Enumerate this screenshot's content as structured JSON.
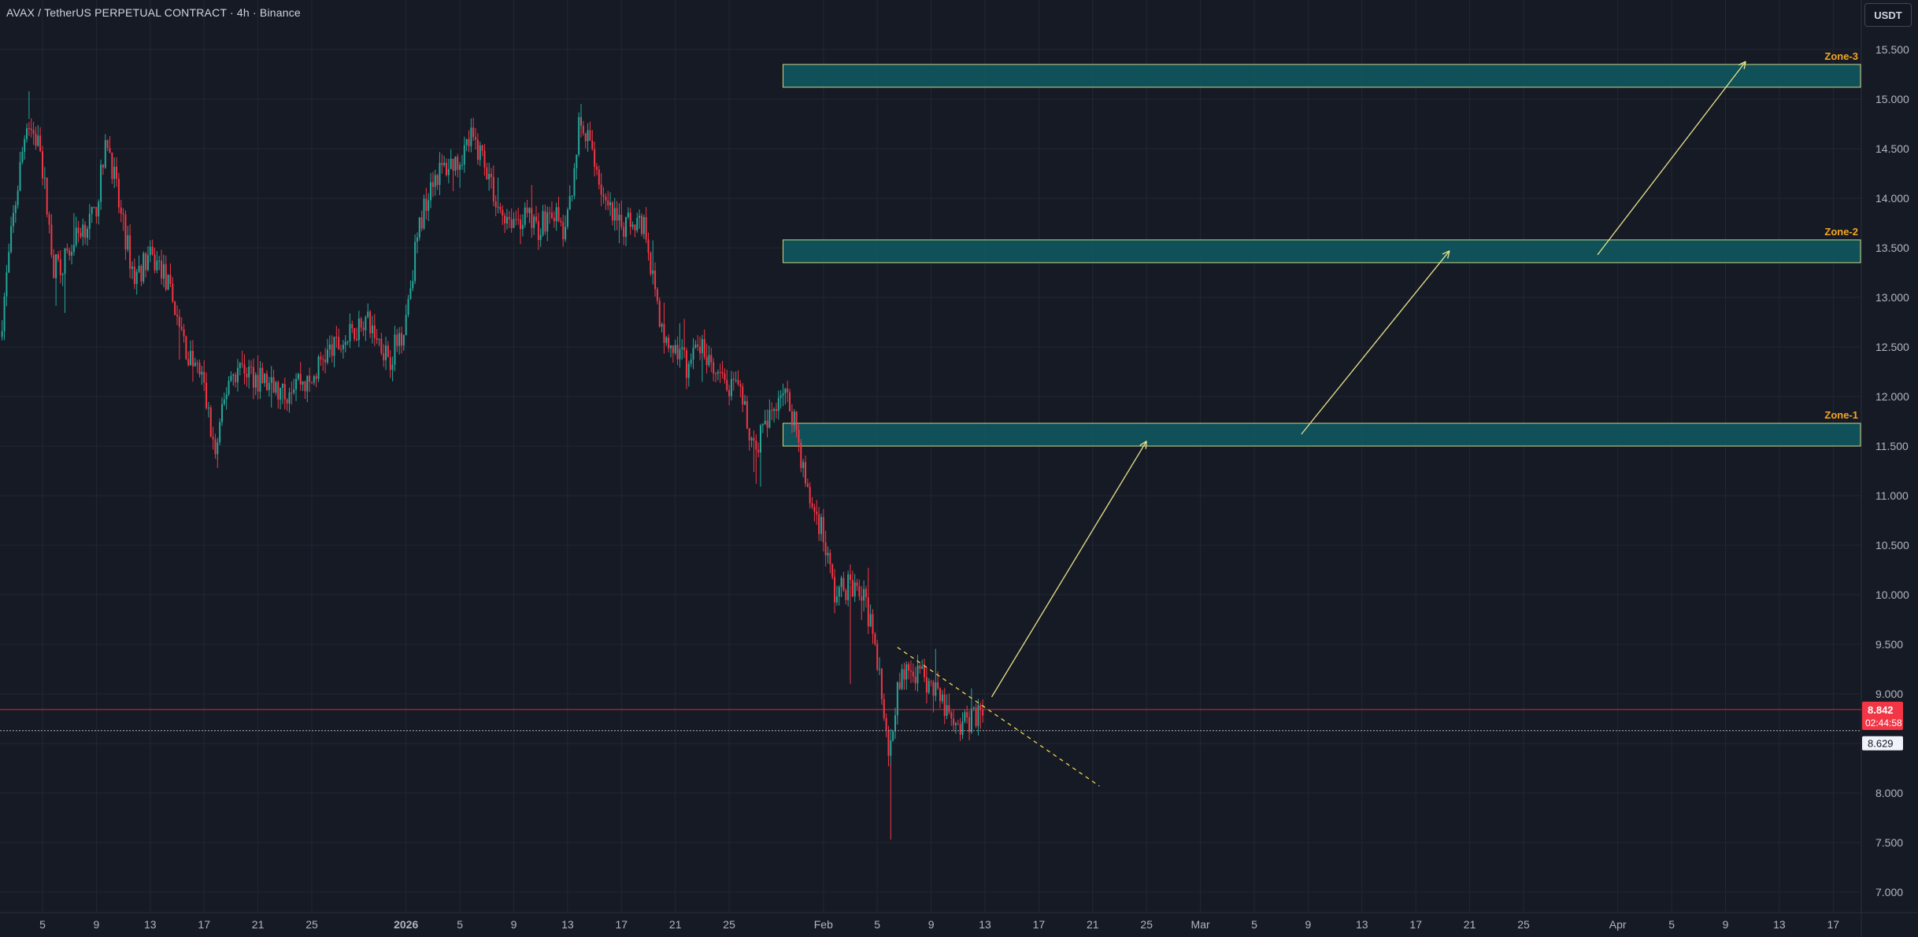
{
  "header": {
    "title": "AVAX / TetherUS PERPETUAL CONTRACT · 4h · Binance",
    "currency_button": "USDT"
  },
  "colors": {
    "background": "#161a25",
    "grid": "#232734",
    "up": "#26a69a",
    "down": "#f23645",
    "zone_fill": "#0e5a63",
    "zone_border": "#c8d98a",
    "zone_label": "#f5a623",
    "arrow": "#e8e38a",
    "trendline": "#f0d84a",
    "last_price": "#f23645",
    "axis_text": "#b2b5be"
  },
  "chart_data": {
    "type": "candlestick",
    "symbol": "AVAX / TetherUS PERPETUAL CONTRACT",
    "interval": "4h",
    "exchange": "Binance",
    "y_axis": {
      "ticks": [
        "15.500",
        "15.000",
        "14.500",
        "14.000",
        "13.500",
        "13.000",
        "12.500",
        "12.000",
        "11.500",
        "11.000",
        "10.500",
        "10.000",
        "9.500",
        "9.000",
        "8.500",
        "8.000",
        "7.500",
        "7.000"
      ],
      "range": [
        6.82,
        15.72
      ]
    },
    "x_axis": {
      "ticks": [
        {
          "label": "5",
          "date": "2025-12-05"
        },
        {
          "label": "9",
          "date": "2025-12-09"
        },
        {
          "label": "13",
          "date": "2025-12-13"
        },
        {
          "label": "17",
          "date": "2025-12-17"
        },
        {
          "label": "21",
          "date": "2025-12-21"
        },
        {
          "label": "25",
          "date": "2025-12-25"
        },
        {
          "label": "2026",
          "date": "2026-01-01",
          "bold": true
        },
        {
          "label": "5",
          "date": "2026-01-05"
        },
        {
          "label": "9",
          "date": "2026-01-09"
        },
        {
          "label": "13",
          "date": "2026-01-13"
        },
        {
          "label": "17",
          "date": "2026-01-17"
        },
        {
          "label": "21",
          "date": "2026-01-21"
        },
        {
          "label": "25",
          "date": "2026-01-25"
        },
        {
          "label": "Feb",
          "date": "2026-02-01"
        },
        {
          "label": "5",
          "date": "2026-02-05"
        },
        {
          "label": "9",
          "date": "2026-02-09"
        },
        {
          "label": "13",
          "date": "2026-02-13"
        },
        {
          "label": "17",
          "date": "2026-02-17"
        },
        {
          "label": "21",
          "date": "2026-02-21"
        },
        {
          "label": "25",
          "date": "2026-02-25"
        },
        {
          "label": "Mar",
          "date": "2026-03-01"
        },
        {
          "label": "5",
          "date": "2026-03-05"
        },
        {
          "label": "9",
          "date": "2026-03-09"
        },
        {
          "label": "13",
          "date": "2026-03-13"
        },
        {
          "label": "17",
          "date": "2026-03-17"
        },
        {
          "label": "21",
          "date": "2026-03-21"
        },
        {
          "label": "25",
          "date": "2026-03-25"
        },
        {
          "label": "Apr",
          "date": "2026-04-01"
        },
        {
          "label": "5",
          "date": "2026-04-05"
        },
        {
          "label": "9",
          "date": "2026-04-09"
        },
        {
          "label": "13",
          "date": "2026-04-13"
        },
        {
          "label": "17",
          "date": "2026-04-17"
        }
      ]
    },
    "price_path": [
      [
        "2025-12-02",
        12.6
      ],
      [
        "2025-12-03",
        13.8
      ],
      [
        "2025-12-04",
        14.8
      ],
      [
        "2025-12-05",
        14.5
      ],
      [
        "2025-12-06",
        13.3
      ],
      [
        "2025-12-07",
        13.4
      ],
      [
        "2025-12-08",
        13.7
      ],
      [
        "2025-12-09",
        13.8
      ],
      [
        "2025-12-10",
        14.6
      ],
      [
        "2025-12-11",
        13.8
      ],
      [
        "2025-12-12",
        13.2
      ],
      [
        "2025-12-13",
        13.4
      ],
      [
        "2025-12-14",
        13.3
      ],
      [
        "2025-12-15",
        12.9
      ],
      [
        "2025-12-16",
        12.4
      ],
      [
        "2025-12-17",
        12.2
      ],
      [
        "2025-12-18",
        11.4
      ],
      [
        "2025-12-19",
        12.2
      ],
      [
        "2025-12-20",
        12.3
      ],
      [
        "2025-12-21",
        12.2
      ],
      [
        "2025-12-22",
        12.1
      ],
      [
        "2025-12-23",
        12.0
      ],
      [
        "2025-12-24",
        12.2
      ],
      [
        "2025-12-25",
        12.1
      ],
      [
        "2025-12-26",
        12.4
      ],
      [
        "2025-12-27",
        12.5
      ],
      [
        "2025-12-28",
        12.6
      ],
      [
        "2025-12-29",
        12.8
      ],
      [
        "2025-12-30",
        12.6
      ],
      [
        "2025-12-31",
        12.4
      ],
      [
        "2026-01-01",
        12.7
      ],
      [
        "2026-01-02",
        13.6
      ],
      [
        "2026-01-03",
        14.2
      ],
      [
        "2026-01-04",
        14.3
      ],
      [
        "2026-01-05",
        14.4
      ],
      [
        "2026-01-06",
        14.6
      ],
      [
        "2026-01-07",
        14.4
      ],
      [
        "2026-01-08",
        13.9
      ],
      [
        "2026-01-09",
        13.8
      ],
      [
        "2026-01-10",
        13.8
      ],
      [
        "2026-01-11",
        13.7
      ],
      [
        "2026-01-12",
        13.9
      ],
      [
        "2026-01-13",
        13.6
      ],
      [
        "2026-01-14",
        14.7
      ],
      [
        "2026-01-15",
        14.5
      ],
      [
        "2026-01-16",
        13.9
      ],
      [
        "2026-01-17",
        13.7
      ],
      [
        "2026-01-18",
        13.8
      ],
      [
        "2026-01-19",
        13.7
      ],
      [
        "2026-01-20",
        12.7
      ],
      [
        "2026-01-21",
        12.5
      ],
      [
        "2026-01-22",
        12.3
      ],
      [
        "2026-01-23",
        12.5
      ],
      [
        "2026-01-24",
        12.2
      ],
      [
        "2026-01-25",
        12.1
      ],
      [
        "2026-01-26",
        12.0
      ],
      [
        "2026-01-27",
        11.5
      ],
      [
        "2026-01-28",
        11.7
      ],
      [
        "2026-01-29",
        12.1
      ],
      [
        "2026-01-30",
        11.8
      ],
      [
        "2026-01-31",
        11.0
      ],
      [
        "2026-02-01",
        10.7
      ],
      [
        "2026-02-02",
        10.0
      ],
      [
        "2026-02-03",
        10.1
      ],
      [
        "2026-02-04",
        10.0
      ],
      [
        "2026-02-05",
        9.6
      ],
      [
        "2026-02-06",
        8.3
      ],
      [
        "2026-02-06T12",
        8.9
      ],
      [
        "2026-02-07",
        9.2
      ],
      [
        "2026-02-08",
        9.2
      ],
      [
        "2026-02-09",
        9.1
      ],
      [
        "2026-02-10",
        8.9
      ],
      [
        "2026-02-11",
        8.6
      ],
      [
        "2026-02-12",
        8.75
      ],
      [
        "2026-02-12T20",
        8.84
      ]
    ],
    "wick_spikes": [
      {
        "date": "2026-02-06",
        "low": 7.53
      },
      {
        "date": "2026-01-14",
        "high": 14.95
      },
      {
        "date": "2025-12-04",
        "high": 15.08
      },
      {
        "date": "2025-12-18",
        "low": 11.28
      },
      {
        "date": "2026-02-03",
        "low": 9.1
      }
    ],
    "zones": [
      {
        "label": "Zone-3",
        "top": 15.35,
        "bottom": 15.12,
        "start": "2026-01-29"
      },
      {
        "label": "Zone-2",
        "top": 13.58,
        "bottom": 13.35,
        "start": "2026-01-29"
      },
      {
        "label": "Zone-1",
        "top": 11.73,
        "bottom": 11.5,
        "start": "2026-01-29"
      }
    ],
    "arrows": [
      {
        "from": {
          "date": "2026-02-13T12",
          "price": 8.97
        },
        "to": {
          "date": "2026-02-25",
          "price": 11.55
        }
      },
      {
        "from": {
          "date": "2026-03-08T12",
          "price": 11.62
        },
        "to": {
          "date": "2026-03-19T12",
          "price": 13.47
        }
      },
      {
        "from": {
          "date": "2026-03-30T12",
          "price": 13.43
        },
        "to": {
          "date": "2026-04-10T12",
          "price": 15.38
        }
      }
    ],
    "trendline": {
      "from": {
        "date": "2026-02-06T12",
        "price": 9.47
      },
      "to": {
        "date": "2026-02-21T12",
        "price": 8.07
      }
    },
    "last_price": {
      "value": "8.842",
      "countdown": "02:44:58"
    },
    "reference_price": {
      "value": "8.629"
    }
  }
}
